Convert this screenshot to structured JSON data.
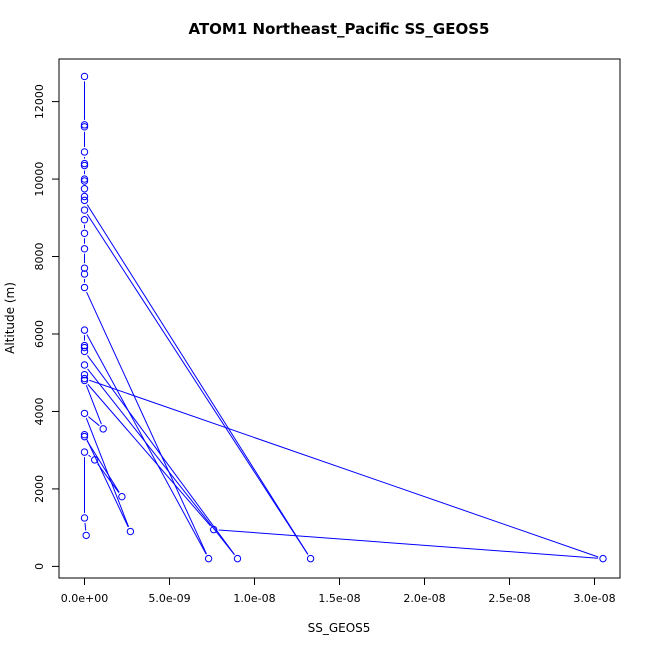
{
  "chart_data": {
    "type": "line",
    "title": "ATOM1 Northeast_Pacific SS_GEOS5",
    "xlabel": "SS_GEOS5",
    "ylabel": "Altitude (m)",
    "xlim": [
      -1.5e-09,
      3.15e-08
    ],
    "ylim": [
      -300,
      13100
    ],
    "x_ticks": [
      0,
      5e-09,
      1e-08,
      1.5e-08,
      2e-08,
      2.5e-08,
      3e-08
    ],
    "x_tick_labels": [
      "0.0e+00",
      "5.0e-09",
      "1.0e-08",
      "1.5e-08",
      "2.0e-08",
      "2.5e-08",
      "3.0e-08"
    ],
    "y_ticks": [
      0,
      2000,
      4000,
      6000,
      8000,
      10000,
      12000
    ],
    "y_tick_labels": [
      "0",
      "2000",
      "4000",
      "6000",
      "8000",
      "10000",
      "12000"
    ],
    "series_color": "#0000ff",
    "points": [
      {
        "x": 0.0,
        "y": 12650
      },
      {
        "x": 0.0,
        "y": 11400
      },
      {
        "x": 0.0,
        "y": 11350
      },
      {
        "x": 0.0,
        "y": 10700
      },
      {
        "x": 0.0,
        "y": 10400
      },
      {
        "x": 0.0,
        "y": 10350
      },
      {
        "x": 0.0,
        "y": 10000
      },
      {
        "x": 0.0,
        "y": 9950
      },
      {
        "x": 0.0,
        "y": 9750
      },
      {
        "x": 0.0,
        "y": 9550
      },
      {
        "x": 0.0,
        "y": 9450
      },
      {
        "x": 1.33e-08,
        "y": 200
      },
      {
        "x": 0.0,
        "y": 9200
      },
      {
        "x": 0.0,
        "y": 8950
      },
      {
        "x": 0.0,
        "y": 8600
      },
      {
        "x": 0.0,
        "y": 8200
      },
      {
        "x": 0.0,
        "y": 7700
      },
      {
        "x": 0.0,
        "y": 7550
      },
      {
        "x": 0.0,
        "y": 7200
      },
      {
        "x": 7.3e-09,
        "y": 200
      },
      {
        "x": 0.0,
        "y": 6100
      },
      {
        "x": 0.0,
        "y": 5700
      },
      {
        "x": 0.0,
        "y": 5650
      },
      {
        "x": 0.0,
        "y": 5550
      },
      {
        "x": 9e-09,
        "y": 200
      },
      {
        "x": 0.0,
        "y": 5200
      },
      {
        "x": 0.0,
        "y": 4950
      },
      {
        "x": 0.0,
        "y": 4850
      },
      {
        "x": 3.05e-08,
        "y": 200
      },
      {
        "x": 7.6e-09,
        "y": 950
      },
      {
        "x": 0.0,
        "y": 4800
      },
      {
        "x": 1.1e-09,
        "y": 3550
      },
      {
        "x": 0.0,
        "y": 3950
      },
      {
        "x": 2.7e-09,
        "y": 900
      },
      {
        "x": 0.0,
        "y": 3400
      },
      {
        "x": 0.0,
        "y": 3350
      },
      {
        "x": 2.2e-09,
        "y": 1800
      },
      {
        "x": 6e-10,
        "y": 2750
      },
      {
        "x": 0.0,
        "y": 2950
      },
      {
        "x": 0.0,
        "y": 1250
      },
      {
        "x": 1e-10,
        "y": 800
      }
    ]
  }
}
